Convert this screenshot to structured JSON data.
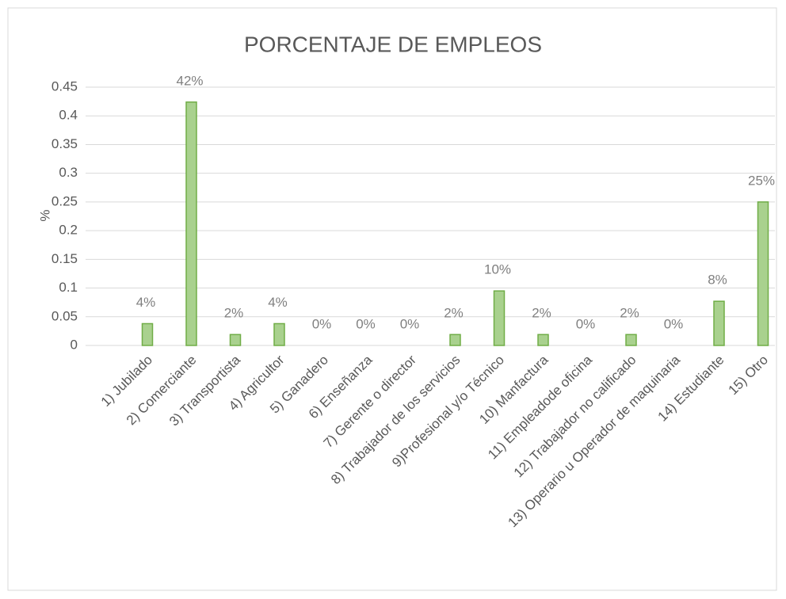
{
  "chart_data": {
    "type": "bar",
    "title": "PORCENTAJE DE EMPLEOS",
    "y_label": "%",
    "categories": [
      "1) Jubilado",
      "2) Comerciante",
      "3) Transportista",
      "4) Agricultor",
      "5) Ganadero",
      "6) Enseñanza",
      "7) Gerente o director",
      "8) Trabajador de los servicios",
      "9)Profesional y/o Técnico",
      "10) Manfactura",
      "11) Empleadode oficina",
      "12) Trabajador no calificado",
      "13) Operario u Operador de maquinaria",
      "14) Estudiante",
      "15) Otro"
    ],
    "values": [
      0.038,
      0.424,
      0.019,
      0.038,
      0,
      0,
      0,
      0.019,
      0.095,
      0.019,
      0,
      0.019,
      0,
      0.077,
      0.25
    ],
    "value_labels": [
      "4%",
      "42%",
      "2%",
      "4%",
      "0%",
      "0%",
      "0%",
      "2%",
      "10%",
      "2%",
      "0%",
      "2%",
      "0%",
      "8%",
      "25%"
    ],
    "color": "#a9d18e",
    "edge_color": "#70ad47",
    "ylim": [
      0,
      0.45
    ],
    "yticks": [
      0,
      0.05,
      0.1,
      0.15,
      0.2,
      0.25,
      0.3,
      0.35,
      0.4,
      0.45
    ],
    "grid": true
  }
}
